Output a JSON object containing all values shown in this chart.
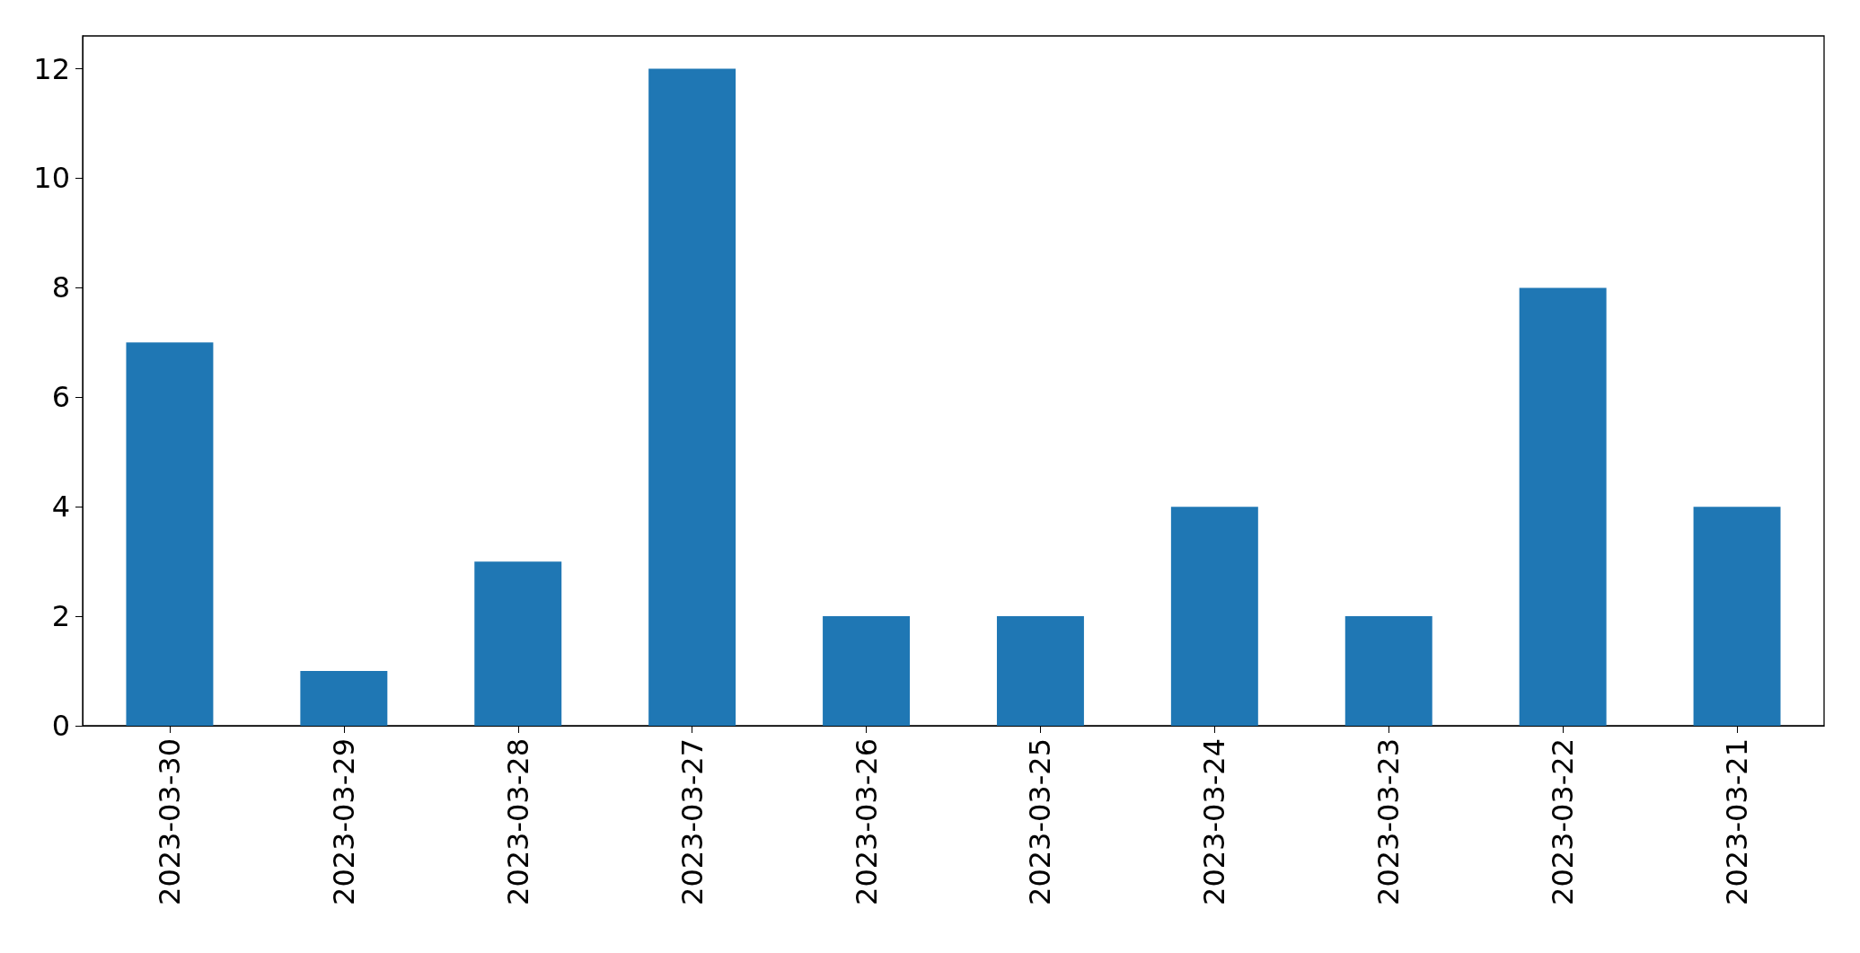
{
  "chart_data": {
    "type": "bar",
    "categories": [
      "2023-03-30",
      "2023-03-29",
      "2023-03-28",
      "2023-03-27",
      "2023-03-26",
      "2023-03-25",
      "2023-03-24",
      "2023-03-23",
      "2023-03-22",
      "2023-03-21"
    ],
    "values": [
      7,
      1,
      3,
      12,
      2,
      2,
      4,
      2,
      8,
      4
    ],
    "color": "#1f77b4",
    "ylim": [
      0,
      12.6
    ],
    "yticks": [
      0,
      2,
      4,
      6,
      8,
      10,
      12
    ]
  }
}
